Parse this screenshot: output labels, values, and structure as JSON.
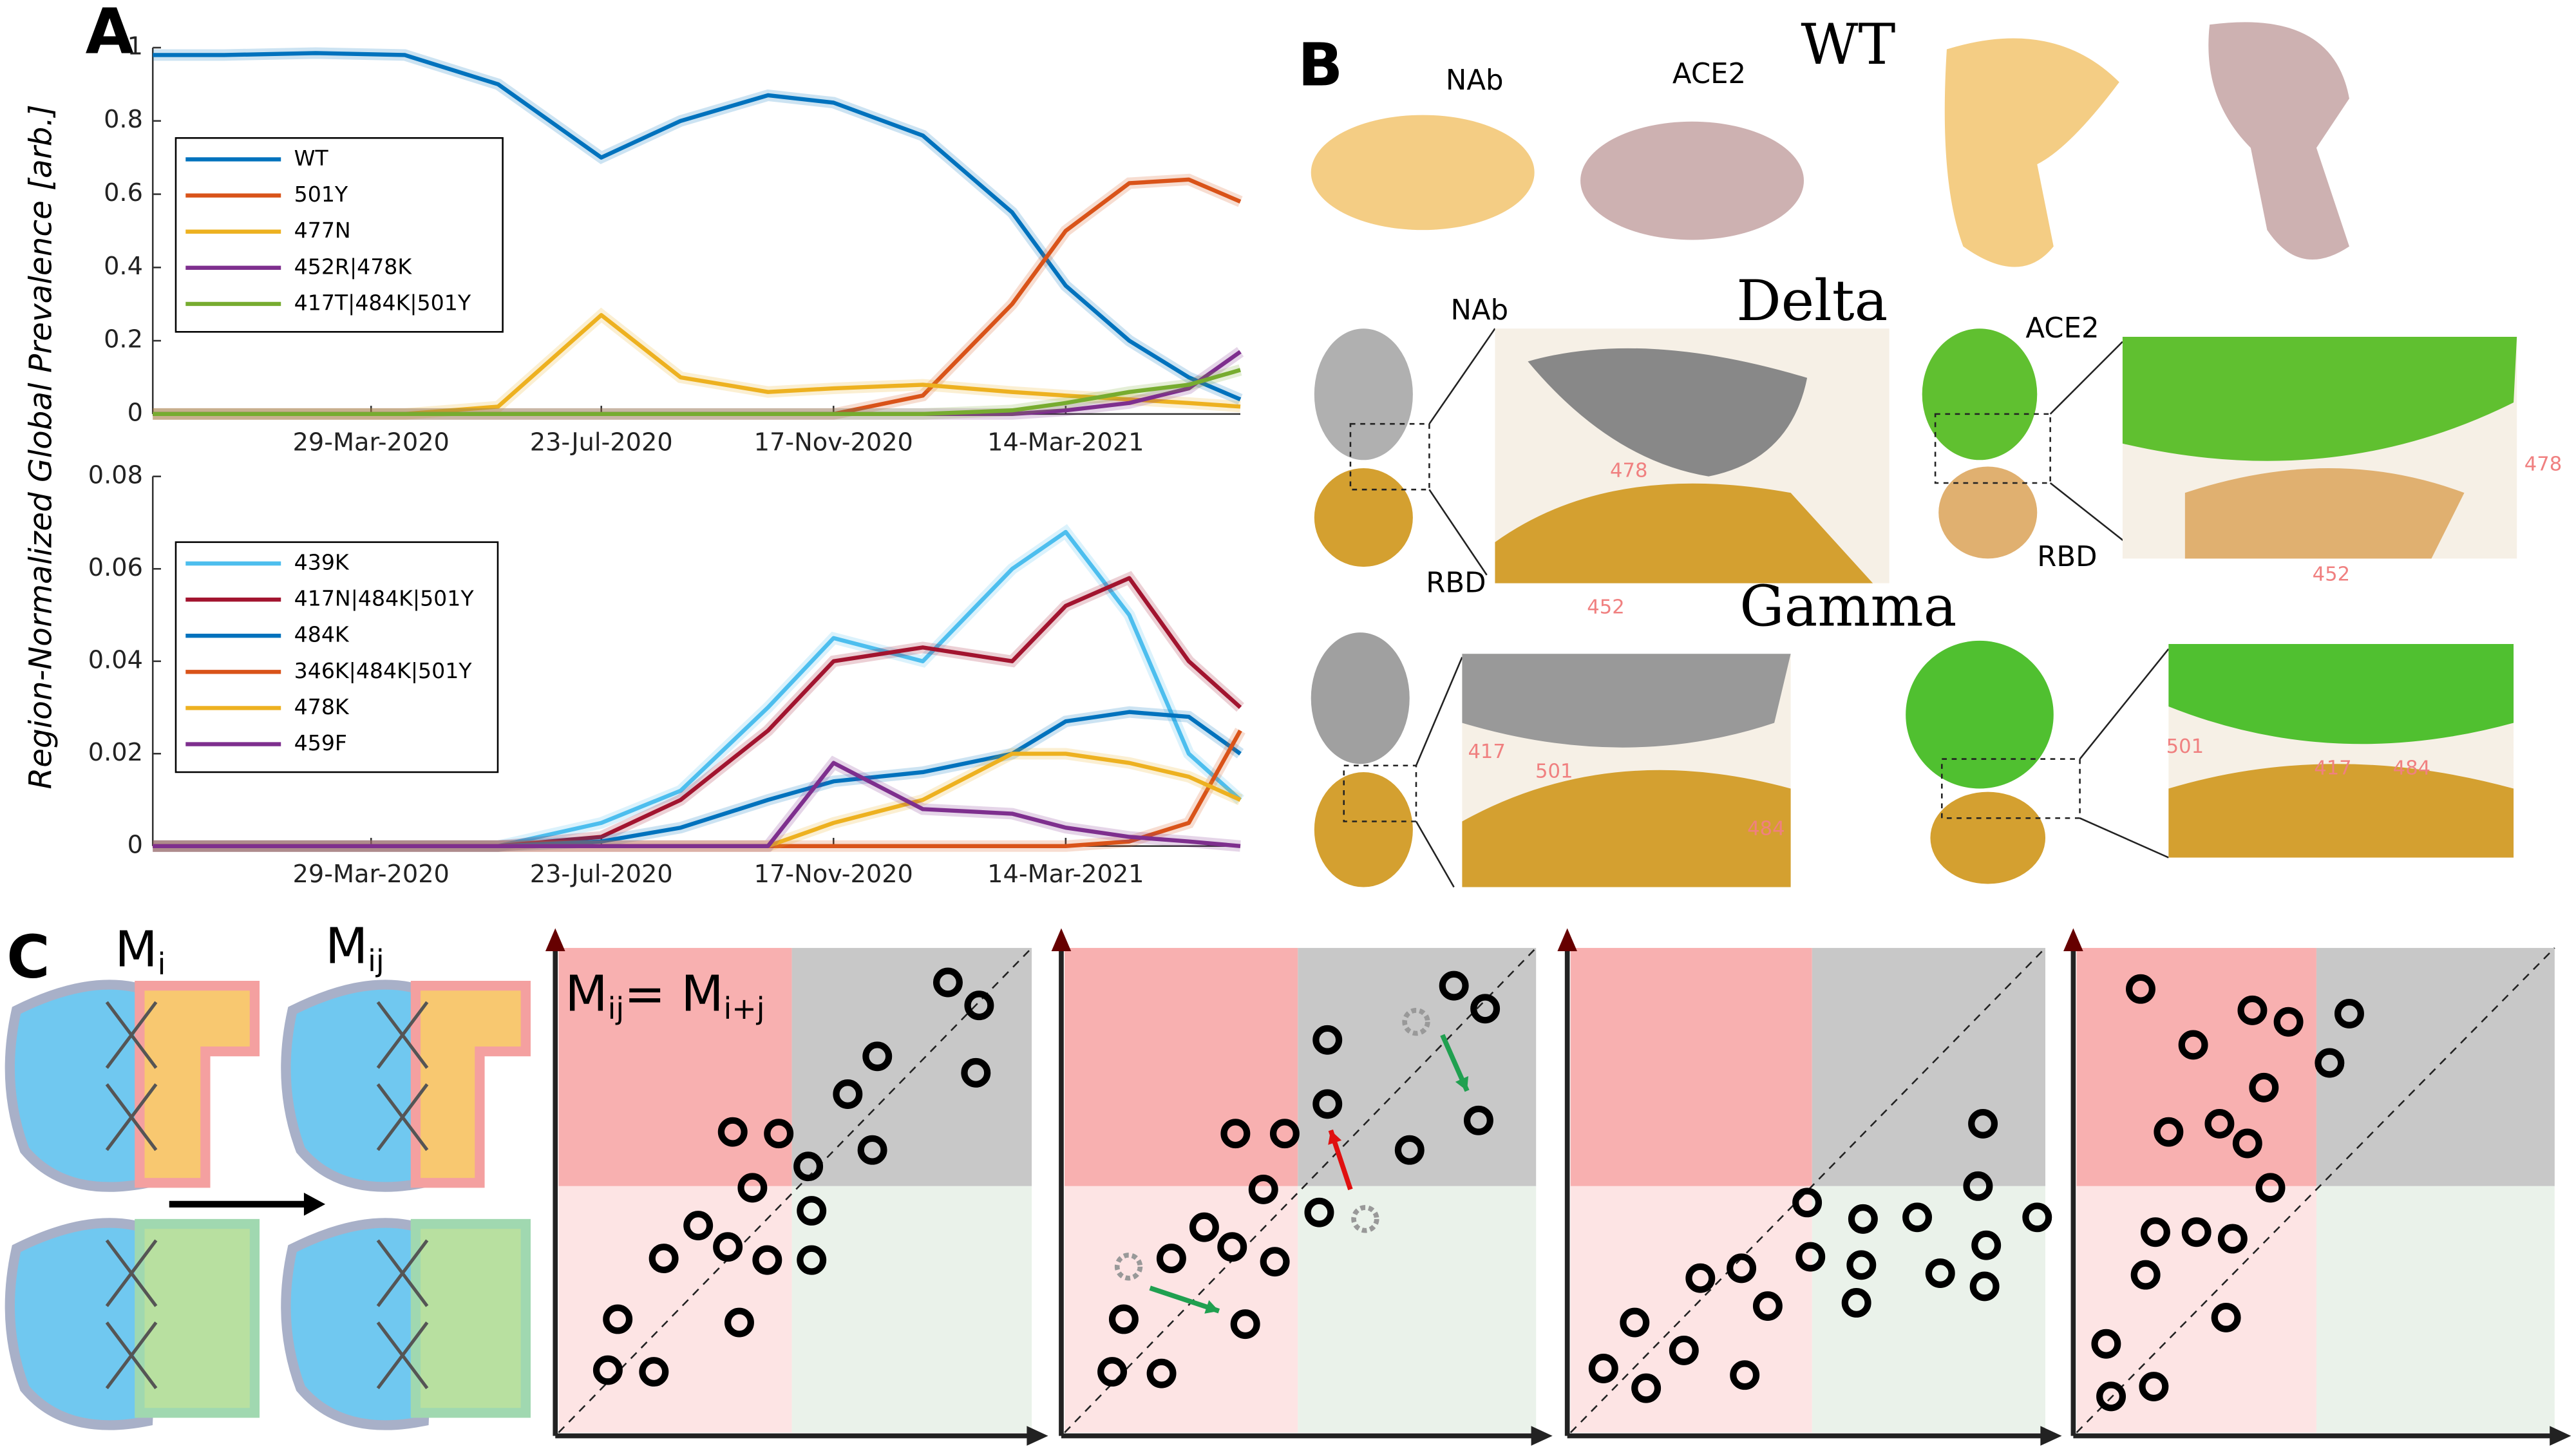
{
  "chart_data": [
    {
      "type": "line",
      "panel_label": "A",
      "ylabel": "Region-Normalized Global Prevalence [arb.]",
      "x": [
        "2019-12-10",
        "2020-01-15",
        "2020-03-01",
        "2020-04-15",
        "2020-06-01",
        "2020-07-23",
        "2020-09-01",
        "2020-10-15",
        "2020-11-17",
        "2021-01-01",
        "2021-02-15",
        "2021-03-14",
        "2021-04-15",
        "2021-05-15",
        "2021-06-10"
      ],
      "xlim": [
        "2019-12-10",
        "2021-06-10"
      ],
      "xticks": [
        {
          "value": "2020-03-29",
          "label": "29-Mar-2020"
        },
        {
          "value": "2020-07-23",
          "label": "23-Jul-2020"
        },
        {
          "value": "2020-11-17",
          "label": "17-Nov-2020"
        },
        {
          "value": "2021-03-14",
          "label": "14-Mar-2021"
        }
      ],
      "ylim": [
        0,
        1
      ],
      "yticks": [
        0,
        0.2,
        0.4,
        0.6,
        0.8,
        1
      ],
      "legend": "upper left",
      "series": [
        {
          "name": "WT",
          "color": "#0072bd",
          "values": [
            0.98,
            0.98,
            0.985,
            0.98,
            0.9,
            0.7,
            0.8,
            0.87,
            0.85,
            0.76,
            0.55,
            0.35,
            0.2,
            0.1,
            0.04
          ]
        },
        {
          "name": "501Y",
          "color": "#d95319",
          "values": [
            0,
            0,
            0,
            0,
            0,
            0,
            0,
            0,
            0,
            0.05,
            0.3,
            0.5,
            0.63,
            0.64,
            0.58
          ]
        },
        {
          "name": "477N",
          "color": "#edb120",
          "values": [
            0,
            0,
            0,
            0,
            0.02,
            0.27,
            0.1,
            0.06,
            0.07,
            0.08,
            0.06,
            0.05,
            0.04,
            0.03,
            0.02
          ]
        },
        {
          "name": "452R|478K",
          "color": "#7e2f8e",
          "values": [
            0,
            0,
            0,
            0,
            0,
            0,
            0,
            0,
            0,
            0,
            0,
            0.01,
            0.03,
            0.07,
            0.17
          ]
        },
        {
          "name": "417T|484K|501Y",
          "color": "#77ac30",
          "values": [
            0,
            0,
            0,
            0,
            0,
            0,
            0,
            0,
            0,
            0,
            0.01,
            0.03,
            0.06,
            0.08,
            0.12
          ]
        }
      ]
    },
    {
      "type": "line",
      "x": [
        "2019-12-10",
        "2020-01-15",
        "2020-03-01",
        "2020-04-15",
        "2020-06-01",
        "2020-07-23",
        "2020-09-01",
        "2020-10-15",
        "2020-11-17",
        "2021-01-01",
        "2021-02-15",
        "2021-03-14",
        "2021-04-15",
        "2021-05-15",
        "2021-06-10"
      ],
      "xlim": [
        "2019-12-10",
        "2021-06-10"
      ],
      "xticks": [
        {
          "value": "2020-03-29",
          "label": "29-Mar-2020"
        },
        {
          "value": "2020-07-23",
          "label": "23-Jul-2020"
        },
        {
          "value": "2020-11-17",
          "label": "17-Nov-2020"
        },
        {
          "value": "2021-03-14",
          "label": "14-Mar-2021"
        }
      ],
      "ylim": [
        0,
        0.08
      ],
      "yticks": [
        0,
        0.02,
        0.04,
        0.06,
        0.08
      ],
      "legend": "upper left",
      "series": [
        {
          "name": "439K",
          "color": "#4dbeee",
          "values": [
            0,
            0,
            0,
            0,
            0,
            0.005,
            0.012,
            0.03,
            0.045,
            0.04,
            0.06,
            0.068,
            0.05,
            0.02,
            0.01
          ]
        },
        {
          "name": "417N|484K|501Y",
          "color": "#a2142f",
          "values": [
            0,
            0,
            0,
            0,
            0,
            0.002,
            0.01,
            0.025,
            0.04,
            0.043,
            0.04,
            0.052,
            0.058,
            0.04,
            0.03
          ]
        },
        {
          "name": "484K",
          "color": "#0072bd",
          "values": [
            0,
            0,
            0,
            0,
            0,
            0.001,
            0.004,
            0.01,
            0.014,
            0.016,
            0.02,
            0.027,
            0.029,
            0.028,
            0.02
          ]
        },
        {
          "name": "346K|484K|501Y",
          "color": "#d95319",
          "values": [
            0,
            0,
            0,
            0,
            0,
            0,
            0,
            0,
            0,
            0,
            0,
            0,
            0.001,
            0.005,
            0.025
          ]
        },
        {
          "name": "478K",
          "color": "#edb120",
          "values": [
            0,
            0,
            0,
            0,
            0,
            0,
            0,
            0,
            0.005,
            0.01,
            0.02,
            0.02,
            0.018,
            0.015,
            0.01
          ]
        },
        {
          "name": "459F",
          "color": "#7e2f8e",
          "values": [
            0,
            0,
            0,
            0,
            0,
            0,
            0,
            0,
            0.018,
            0.008,
            0.007,
            0.004,
            0.002,
            0.001,
            0
          ]
        }
      ]
    }
  ],
  "panel_b": {
    "letter": "B",
    "wt": {
      "title": "WT",
      "nab": "NAb",
      "ace2": "ACE2"
    },
    "delta": {
      "title": "Delta",
      "nab": "NAb",
      "ace2": "ACE2",
      "rbd_left": "RBD",
      "rbd_right": "RBD",
      "residues_left": [
        "478",
        "452"
      ],
      "residues_right": [
        "478",
        "452"
      ]
    },
    "gamma": {
      "title": "Gamma",
      "residues_left": [
        "417",
        "501",
        "484"
      ],
      "residues_right": [
        "501",
        "417",
        "484"
      ]
    }
  },
  "panel_c": {
    "letter": "C",
    "mi": [
      "M",
      "i"
    ],
    "mij": [
      "M",
      "ij"
    ],
    "equation": [
      "M",
      "ij",
      "= M",
      "i+j"
    ]
  }
}
